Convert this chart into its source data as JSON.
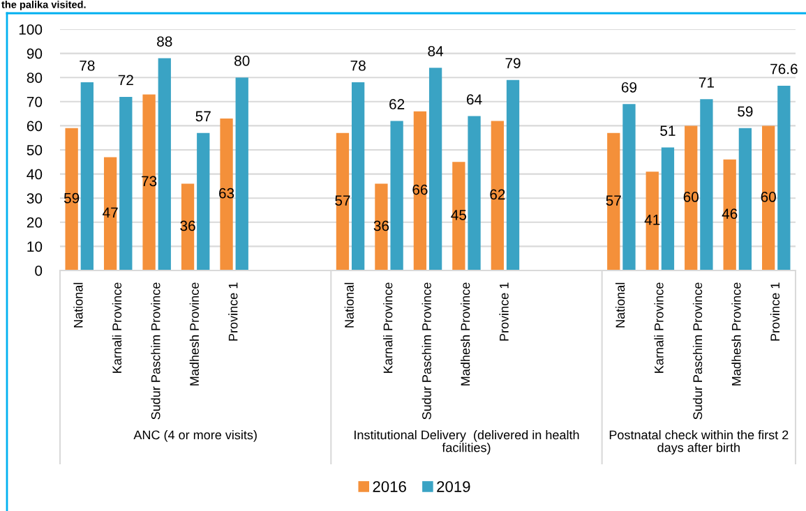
{
  "chart_data": {
    "type": "bar",
    "title": "the palika visited.",
    "categories": [
      "National",
      "Karnali Province",
      "Sudur Paschim Province",
      "Madhesh Province",
      "Province 1",
      null,
      null,
      "National",
      "Karnali Province",
      "Sudur Paschim Province",
      "Madhesh Province",
      "Province 1",
      null,
      null,
      "National",
      "Karnali Province",
      "Sudur Paschim Province",
      "Madhesh Province",
      "Province 1"
    ],
    "series": [
      {
        "name": "2016",
        "color": "#f4903a",
        "values": [
          59,
          47,
          73,
          36,
          63,
          null,
          null,
          57,
          36,
          66,
          45,
          62,
          null,
          null,
          57,
          41,
          60,
          46,
          60
        ]
      },
      {
        "name": "2019",
        "color": "#3aa3c4",
        "values": [
          78,
          72,
          88,
          57,
          80,
          null,
          null,
          78,
          62,
          84,
          64,
          79,
          null,
          null,
          69,
          51,
          71,
          59,
          76.6
        ]
      }
    ],
    "ylim": [
      0,
      100
    ],
    "yticks": [
      0,
      10,
      20,
      30,
      40,
      50,
      60,
      70,
      80,
      90,
      100
    ],
    "grid": "y",
    "legend": "bottom",
    "data_labels": true,
    "annotations": [
      "ANC (4 or more visits)",
      "Institutional Delivery  (delivered in health facilities)",
      "Postnatal check within the first 2 days after birth"
    ]
  }
}
